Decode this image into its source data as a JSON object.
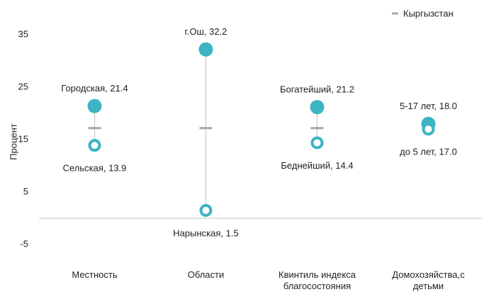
{
  "chart_data": {
    "type": "dot-range",
    "y_label": "Процент",
    "categories": [
      "Местность",
      "Области",
      "Квинтиль индекса благосостояния",
      "Домохозяйства,с детьми"
    ],
    "series": [
      {
        "color": "#3cb4c4",
        "values": [
          21.4,
          32.2,
          21.2,
          18.0
        ],
        "value_labels": [
          "Городская,  21.4",
          "г.Ош, 32.2",
          "Богатейший, 21.2",
          "5-17 лет, 18.0"
        ]
      },
      {
        "color": "#3cb4c4",
        "values": [
          13.9,
          1.5,
          14.4,
          17.0
        ],
        "value_labels": [
          "Сельская, 13.9",
          "Нарынская, 1.5",
          "Беднейший,  14.4",
          "до 5 лет, 17.0"
        ]
      }
    ],
    "reference": {
      "name": "Кыргызстан",
      "value": 17.2,
      "color": "#a6a6a6"
    },
    "ylim": [
      -10,
      40
    ],
    "yticks": [
      -5,
      5,
      15,
      25,
      35
    ],
    "legend": "top-right"
  }
}
